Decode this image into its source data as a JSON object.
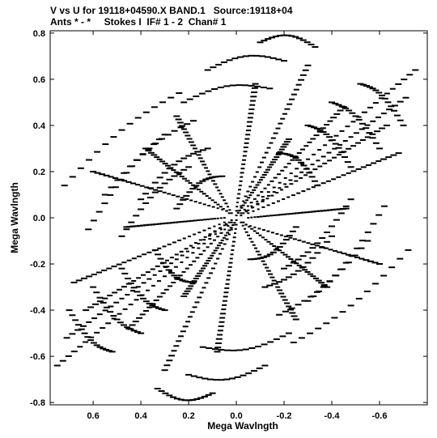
{
  "header": {
    "line1": "V vs U for 19118+04590.X BAND.1   Source:19118+04",
    "line2": "Ants * - *     Stokes I  IF# 1 - 2  Chan# 1"
  },
  "chart_data": {
    "type": "scatter",
    "xlabel": "Mega Wavlngth",
    "ylabel": "Mega Wavlngth",
    "xlim": [
      0.78,
      -0.8
    ],
    "ylim": [
      -0.81,
      0.81
    ],
    "x_ticks": [
      0.6,
      0.4,
      0.2,
      0.0,
      -0.2,
      -0.4,
      -0.6
    ],
    "x_tick_labels": [
      "0.6",
      "0.4",
      "0.2",
      "0.0",
      "-0.2",
      "-0.4",
      "-0.6"
    ],
    "y_ticks": [
      0.8,
      0.6,
      0.4,
      0.2,
      0.0,
      -0.2,
      -0.4,
      -0.6,
      -0.8
    ],
    "y_tick_labels": [
      "0.8",
      "0.6",
      "0.4",
      "0.2",
      "0.0",
      "-0.2",
      "-0.4",
      "-0.6",
      "-0.8"
    ],
    "grid": false,
    "tracks": [
      {
        "x0": -0.04,
        "y0": 0.03,
        "x1": -0.75,
        "y1": 0.64
      },
      {
        "x0": 0.04,
        "y0": -0.03,
        "x1": 0.75,
        "y1": -0.64
      },
      {
        "x0": -0.02,
        "y0": 0.01,
        "x1": -0.71,
        "y1": 0.52
      },
      {
        "x0": 0.02,
        "y0": -0.01,
        "x1": 0.71,
        "y1": -0.52
      },
      {
        "x0": -0.03,
        "y0": 0.02,
        "x1": -0.63,
        "y1": 0.4
      },
      {
        "x0": 0.03,
        "y0": -0.02,
        "x1": 0.63,
        "y1": -0.4
      },
      {
        "x0": -0.05,
        "y0": 0.02,
        "x1": -0.68,
        "y1": 0.28
      },
      {
        "x0": 0.05,
        "y0": -0.02,
        "x1": 0.68,
        "y1": -0.28
      },
      {
        "x0": -0.02,
        "y0": 0.02,
        "x1": -0.45,
        "y1": 0.48
      },
      {
        "x0": 0.02,
        "y0": -0.02,
        "x1": 0.45,
        "y1": -0.48
      },
      {
        "x0": -0.01,
        "y0": 0.03,
        "x1": -0.3,
        "y1": 0.66
      },
      {
        "x0": 0.01,
        "y0": -0.03,
        "x1": 0.3,
        "y1": -0.66
      },
      {
        "x0": 0.0,
        "y0": 0.03,
        "x1": -0.08,
        "y1": 0.58
      },
      {
        "x0": 0.0,
        "y0": -0.03,
        "x1": 0.08,
        "y1": -0.58
      },
      {
        "x0": 0.02,
        "y0": 0.02,
        "x1": 0.25,
        "y1": 0.44
      },
      {
        "x0": -0.02,
        "y0": -0.02,
        "x1": -0.25,
        "y1": -0.44
      },
      {
        "x0": 0.04,
        "y0": 0.03,
        "x1": 0.6,
        "y1": 0.2
      },
      {
        "x0": -0.04,
        "y0": -0.03,
        "x1": -0.6,
        "y1": -0.2
      },
      {
        "x0": 0.03,
        "y0": 0.02,
        "x1": 0.38,
        "y1": 0.3
      },
      {
        "x0": -0.03,
        "y0": -0.02,
        "x1": -0.38,
        "y1": -0.3
      },
      {
        "x0": 0.0,
        "y0": 0.01,
        "x1": -0.22,
        "y1": 0.34
      },
      {
        "x0": 0.0,
        "y0": -0.01,
        "x1": 0.22,
        "y1": -0.34
      },
      {
        "x0": 0.05,
        "y0": 0.0,
        "x1": 0.46,
        "y1": -0.04
      },
      {
        "x0": -0.05,
        "y0": 0.0,
        "x1": -0.46,
        "y1": 0.04
      }
    ],
    "arcs": [
      {
        "x0": 0.72,
        "y0": 0.14,
        "x1": 0.24,
        "y1": 0.54
      },
      {
        "x0": -0.72,
        "y0": -0.14,
        "x1": -0.24,
        "y1": -0.54
      },
      {
        "x0": 0.55,
        "y0": 0.1,
        "x1": 0.18,
        "y1": 0.42
      },
      {
        "x0": -0.55,
        "y0": -0.1,
        "x1": -0.18,
        "y1": -0.42
      },
      {
        "x0": 0.4,
        "y0": 0.08,
        "x1": 0.12,
        "y1": 0.3
      },
      {
        "x0": -0.4,
        "y0": -0.08,
        "x1": -0.12,
        "y1": -0.3
      },
      {
        "x0": 0.25,
        "y0": 0.04,
        "x1": 0.06,
        "y1": 0.18
      },
      {
        "x0": -0.25,
        "y0": -0.04,
        "x1": -0.06,
        "y1": -0.18
      },
      {
        "x0": -0.1,
        "y0": 0.76,
        "x1": -0.33,
        "y1": 0.74
      },
      {
        "x0": 0.1,
        "y0": -0.76,
        "x1": 0.33,
        "y1": -0.74
      },
      {
        "x0": 0.12,
        "y0": 0.64,
        "x1": -0.2,
        "y1": 0.68
      },
      {
        "x0": -0.12,
        "y0": -0.64,
        "x1": 0.2,
        "y1": -0.68
      },
      {
        "x0": 0.22,
        "y0": 0.5,
        "x1": -0.14,
        "y1": 0.56
      },
      {
        "x0": -0.22,
        "y0": -0.5,
        "x1": 0.14,
        "y1": -0.56
      },
      {
        "x0": 0.62,
        "y0": -0.05,
        "x1": 0.3,
        "y1": 0.36
      },
      {
        "x0": -0.62,
        "y0": 0.05,
        "x1": -0.3,
        "y1": -0.36
      },
      {
        "x0": 0.48,
        "y0": -0.08,
        "x1": 0.2,
        "y1": 0.22
      },
      {
        "x0": -0.48,
        "y0": 0.08,
        "x1": -0.2,
        "y1": -0.22
      },
      {
        "x0": -0.52,
        "y0": 0.58,
        "x1": -0.7,
        "y1": 0.4
      },
      {
        "x0": 0.52,
        "y0": -0.58,
        "x1": 0.7,
        "y1": -0.4
      },
      {
        "x0": -0.4,
        "y0": 0.5,
        "x1": -0.6,
        "y1": 0.3
      },
      {
        "x0": 0.4,
        "y0": -0.5,
        "x1": 0.6,
        "y1": -0.3
      },
      {
        "x0": -0.3,
        "y0": 0.4,
        "x1": -0.48,
        "y1": 0.22
      },
      {
        "x0": 0.3,
        "y0": -0.4,
        "x1": 0.48,
        "y1": -0.22
      },
      {
        "x0": -0.18,
        "y0": 0.28,
        "x1": -0.34,
        "y1": 0.14
      },
      {
        "x0": 0.18,
        "y0": -0.28,
        "x1": 0.34,
        "y1": -0.14
      }
    ]
  }
}
